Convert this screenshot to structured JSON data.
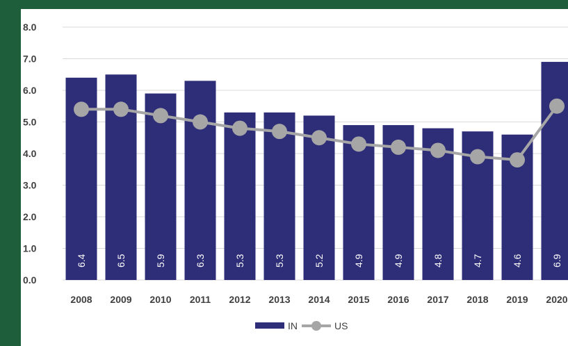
{
  "colors": {
    "background": "#1f5e3b",
    "panel": "#ffffff",
    "bar": "#2e2e78",
    "line": "#a6a6a6",
    "grid": "#d9d9d9",
    "text": "#404040"
  },
  "chart_data": {
    "type": "bar",
    "title": "",
    "xlabel": "",
    "ylabel": "",
    "categories": [
      "2008",
      "2009",
      "2010",
      "2011",
      "2012",
      "2013",
      "2014",
      "2015",
      "2016",
      "2017",
      "2018",
      "2019",
      "2020"
    ],
    "ylim": [
      0,
      8
    ],
    "yticks": [
      "0.0",
      "1.0",
      "2.0",
      "3.0",
      "4.0",
      "5.0",
      "6.0",
      "7.0",
      "8.0"
    ],
    "grid": true,
    "legend_position": "bottom",
    "series": [
      {
        "name": "IN",
        "type": "bar",
        "values": [
          6.4,
          6.5,
          5.9,
          6.3,
          5.3,
          5.3,
          5.2,
          4.9,
          4.9,
          4.8,
          4.7,
          4.6,
          6.9
        ],
        "data_labels": [
          "6.4",
          "6.5",
          "5.9",
          "6.3",
          "5.3",
          "5.3",
          "5.2",
          "4.9",
          "4.9",
          "4.8",
          "4.7",
          "4.6",
          "6.9"
        ]
      },
      {
        "name": "US",
        "type": "line",
        "values": [
          5.4,
          5.4,
          5.2,
          5.0,
          4.8,
          4.7,
          4.5,
          4.3,
          4.2,
          4.1,
          3.9,
          3.8,
          5.5
        ]
      }
    ]
  }
}
